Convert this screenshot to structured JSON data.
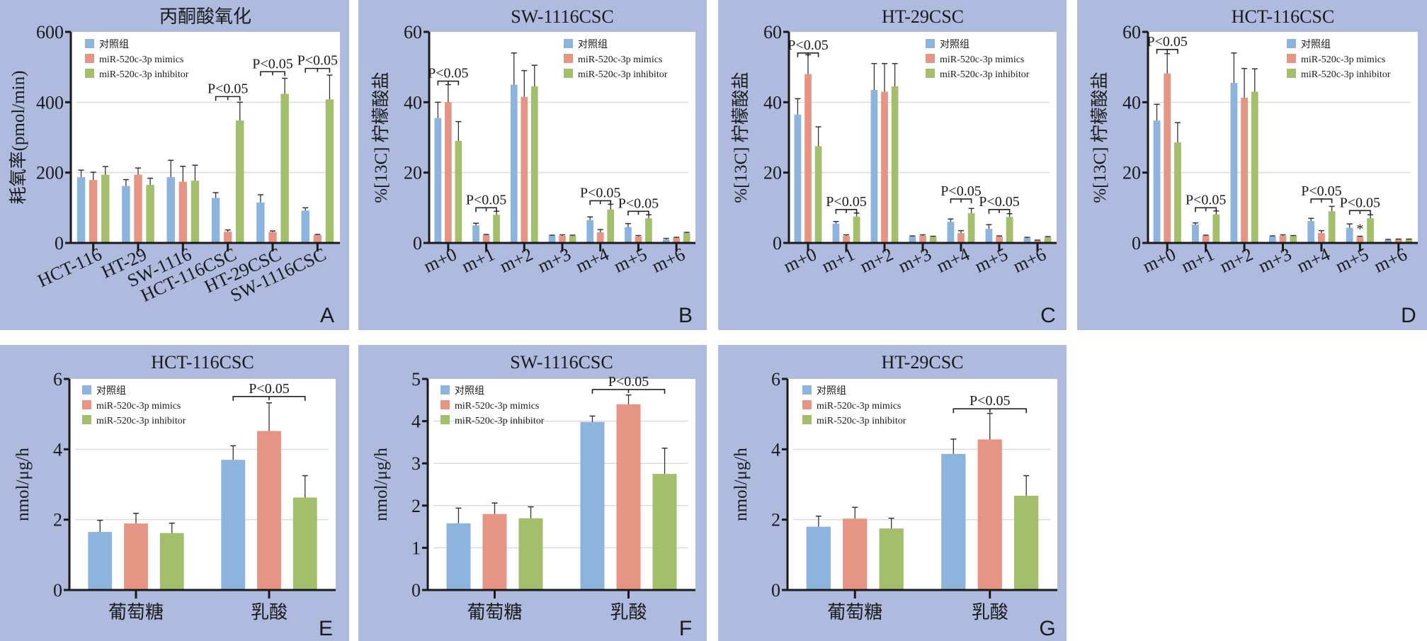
{
  "legend": [
    {
      "label": "对照组",
      "color": "#8db3df"
    },
    {
      "label": "miR-520c-3p mimics",
      "color": "#e69585"
    },
    {
      "label": "miR-520c-3p inhibitor",
      "color": "#a3bf6b"
    }
  ],
  "colors": {
    "panel_bg": "#aebbdf",
    "plot_bg": "#ffffff",
    "grid": "#dcdcdc",
    "axis": "#1a1a1a"
  },
  "chart_data": [
    {
      "id": "A",
      "type": "bar",
      "letter": "A",
      "title": "丙酮酸氧化",
      "xlabel": "",
      "ylabel": "耗氧率(pmol/min)",
      "ylim": [
        0,
        600
      ],
      "yticks": [
        0,
        200,
        400,
        600
      ],
      "grid": true,
      "legend_position": "top-left",
      "x_rotated": true,
      "categories": [
        "HCT-116",
        "HT-29",
        "SW-1116",
        "HCT-116CSC",
        "HT-29CSC",
        "SW-1116CSC"
      ],
      "series": [
        {
          "name": "对照组",
          "values": [
            187,
            162,
            187,
            128,
            115,
            92
          ],
          "errors": [
            20,
            18,
            48,
            15,
            22,
            8
          ]
        },
        {
          "name": "miR-520c-3p mimics",
          "values": [
            179,
            194,
            174,
            32,
            31,
            22
          ],
          "errors": [
            22,
            19,
            44,
            5,
            3,
            2
          ]
        },
        {
          "name": "miR-520c-3p inhibitor",
          "values": [
            194,
            165,
            177,
            348,
            424,
            408
          ],
          "errors": [
            23,
            19,
            44,
            52,
            44,
            69
          ]
        }
      ],
      "annotations": [
        {
          "category": 3,
          "text": "P<0.05"
        },
        {
          "category": 4,
          "text": "P<0.05"
        },
        {
          "category": 5,
          "text": "P<0.05"
        }
      ]
    },
    {
      "id": "B",
      "type": "bar",
      "letter": "B",
      "title": "SW-1116CSC",
      "xlabel": "",
      "ylabel": "%[13C] 柠檬酸盐",
      "ylim": [
        0,
        60
      ],
      "yticks": [
        0,
        20,
        40,
        60
      ],
      "grid": true,
      "legend_position": "top-right",
      "x_rotated": true,
      "categories": [
        "m+0",
        "m+1",
        "m+2",
        "m+3",
        "m+4",
        "m+5",
        "m+6"
      ],
      "series": [
        {
          "name": "对照组",
          "values": [
            35.5,
            5.0,
            45.0,
            2.0,
            6.5,
            4.5,
            1.0
          ],
          "errors": [
            4.5,
            0.6,
            9.0,
            0.2,
            0.9,
            1.0,
            0.3
          ]
        },
        {
          "name": "miR-520c-3p mimics",
          "values": [
            40.0,
            2.2,
            41.5,
            2.0,
            3.0,
            1.8,
            1.4
          ],
          "errors": [
            5.0,
            0.2,
            7.5,
            0.3,
            0.8,
            0.3,
            0.2
          ]
        },
        {
          "name": "miR-520c-3p inhibitor",
          "values": [
            29.0,
            8.0,
            44.5,
            2.0,
            9.5,
            7.0,
            2.8
          ],
          "errors": [
            5.5,
            1.0,
            6.0,
            0.2,
            1.5,
            1.0,
            0.2
          ]
        }
      ],
      "annotations": [
        {
          "category": 0,
          "text": "P<0.05",
          "y": 46
        },
        {
          "category": 1,
          "text": "P<0.05",
          "y": 10
        },
        {
          "category": 4,
          "text": "P<0.05",
          "y": 12
        },
        {
          "category": 5,
          "text": "P<0.05",
          "y": 9
        }
      ]
    },
    {
      "id": "C",
      "type": "bar",
      "letter": "C",
      "title": "HT-29CSC",
      "xlabel": "",
      "ylabel": "%[13C] 柠檬酸盐",
      "ylim": [
        0,
        60
      ],
      "yticks": [
        0,
        20,
        40,
        60
      ],
      "grid": true,
      "legend_position": "top-right",
      "x_rotated": true,
      "categories": [
        "m+0",
        "m+1",
        "m+2",
        "m+3",
        "m+4",
        "m+5",
        "m+6"
      ],
      "series": [
        {
          "name": "对照组",
          "values": [
            36.5,
            5.5,
            43.5,
            1.8,
            6.0,
            4.0,
            1.4
          ],
          "errors": [
            4.5,
            0.6,
            7.5,
            0.2,
            0.8,
            1.2,
            0.2
          ]
        },
        {
          "name": "miR-520c-3p mimics",
          "values": [
            48.0,
            2.0,
            43.0,
            2.0,
            2.8,
            1.8,
            0.7
          ],
          "errors": [
            5.5,
            0.3,
            8.0,
            0.3,
            0.7,
            0.2,
            0.1
          ]
        },
        {
          "name": "miR-520c-3p inhibitor",
          "values": [
            27.5,
            7.5,
            44.5,
            1.7,
            8.5,
            7.4,
            1.6
          ],
          "errors": [
            5.5,
            1.0,
            6.5,
            0.2,
            1.3,
            0.9,
            0.2
          ]
        }
      ],
      "annotations": [
        {
          "category": 0,
          "text": "P<0.05",
          "y": 54
        },
        {
          "category": 1,
          "text": "P<0.05",
          "y": 9.5
        },
        {
          "category": 4,
          "text": "P<0.05",
          "y": 12.5
        },
        {
          "category": 5,
          "text": "P<0.05",
          "y": 9.5
        }
      ]
    },
    {
      "id": "D",
      "type": "bar",
      "letter": "D",
      "title": "HCT-116CSC",
      "xlabel": "",
      "ylabel": "%[13C] 柠檬酸盐",
      "ylim": [
        0,
        60
      ],
      "yticks": [
        0,
        20,
        40,
        60
      ],
      "grid": true,
      "legend_position": "top-right",
      "x_rotated": true,
      "categories": [
        "m+0",
        "m+1",
        "m+2",
        "m+3",
        "m+4",
        "m+5",
        "m+6"
      ],
      "series": [
        {
          "name": "对照组",
          "values": [
            34.8,
            5.2,
            45.5,
            1.8,
            6.2,
            4.3,
            0.8
          ],
          "errors": [
            4.6,
            0.5,
            8.5,
            0.2,
            0.8,
            1.1,
            0.2
          ]
        },
        {
          "name": "miR-520c-3p mimics",
          "values": [
            48.2,
            2.0,
            41.3,
            2.0,
            2.8,
            1.7,
            1.0
          ],
          "errors": [
            5.6,
            0.2,
            8.3,
            0.3,
            0.7,
            0.2,
            0.1
          ]
        },
        {
          "name": "miR-520c-3p inhibitor",
          "values": [
            28.6,
            8.1,
            43.0,
            1.9,
            9.0,
            7.0,
            1.0
          ],
          "errors": [
            5.6,
            1.0,
            6.5,
            0.2,
            1.4,
            1.0,
            0.1
          ]
        }
      ],
      "annotations": [
        {
          "category": 0,
          "text": "P<0.05",
          "y": 55
        },
        {
          "category": 1,
          "text": "P<0.05",
          "y": 10
        },
        {
          "category": 4,
          "text": "P<0.05",
          "y": 12.5
        },
        {
          "category": 5,
          "text": "P<0.05",
          "y": 9.2
        }
      ],
      "markers": [
        {
          "category": 5,
          "series": 1,
          "text": "*"
        }
      ]
    },
    {
      "id": "E",
      "type": "bar",
      "letter": "E",
      "title": "HCT-116CSC",
      "xlabel": "",
      "ylabel": "nmol/μg/h",
      "ylim": [
        0,
        6
      ],
      "yticks": [
        0,
        2,
        4,
        6
      ],
      "grid": true,
      "legend_position": "top-left",
      "x_rotated": false,
      "categories": [
        "葡萄糖",
        "乳酸"
      ],
      "series": [
        {
          "name": "对照组",
          "values": [
            1.65,
            3.7
          ],
          "errors": [
            0.33,
            0.4
          ]
        },
        {
          "name": "miR-520c-3p mimics",
          "values": [
            1.89,
            4.52
          ],
          "errors": [
            0.29,
            0.8
          ]
        },
        {
          "name": "miR-520c-3p inhibitor",
          "values": [
            1.62,
            2.63
          ],
          "errors": [
            0.28,
            0.62
          ]
        }
      ],
      "annotations": [
        {
          "category": 1,
          "text": "P<0.05",
          "y": 5.5,
          "span": "wide"
        }
      ]
    },
    {
      "id": "F",
      "type": "bar",
      "letter": "F",
      "title": "SW-1116CSC",
      "xlabel": "",
      "ylabel": "nmol/μg/h",
      "ylim": [
        0,
        5
      ],
      "yticks": [
        0,
        1,
        2,
        3,
        4,
        5
      ],
      "grid": true,
      "legend_position": "top-left",
      "x_rotated": false,
      "categories": [
        "葡萄糖",
        "乳酸"
      ],
      "series": [
        {
          "name": "对照组",
          "values": [
            1.58,
            3.98
          ],
          "errors": [
            0.36,
            0.14
          ]
        },
        {
          "name": "miR-520c-3p mimics",
          "values": [
            1.8,
            4.4
          ],
          "errors": [
            0.26,
            0.22
          ]
        },
        {
          "name": "miR-520c-3p inhibitor",
          "values": [
            1.7,
            2.75
          ],
          "errors": [
            0.27,
            0.61
          ]
        }
      ],
      "annotations": [
        {
          "category": 1,
          "text": "P<0.05",
          "y": 4.75,
          "span": "wide"
        }
      ]
    },
    {
      "id": "G",
      "type": "bar",
      "letter": "G",
      "title": "HT-29CSC",
      "xlabel": "",
      "ylabel": "nmol/μg/h",
      "ylim": [
        0,
        6
      ],
      "yticks": [
        0,
        2,
        4,
        6
      ],
      "grid": true,
      "legend_position": "top-left",
      "x_rotated": false,
      "categories": [
        "葡萄糖",
        "乳酸"
      ],
      "series": [
        {
          "name": "对照组",
          "values": [
            1.8,
            3.87
          ],
          "errors": [
            0.3,
            0.42
          ]
        },
        {
          "name": "miR-520c-3p mimics",
          "values": [
            2.03,
            4.28
          ],
          "errors": [
            0.32,
            0.74
          ]
        },
        {
          "name": "miR-520c-3p inhibitor",
          "values": [
            1.75,
            2.68
          ],
          "errors": [
            0.29,
            0.57
          ]
        }
      ],
      "annotations": [
        {
          "category": 1,
          "text": "P<0.05",
          "y": 5.15,
          "span": "wide"
        }
      ]
    }
  ]
}
